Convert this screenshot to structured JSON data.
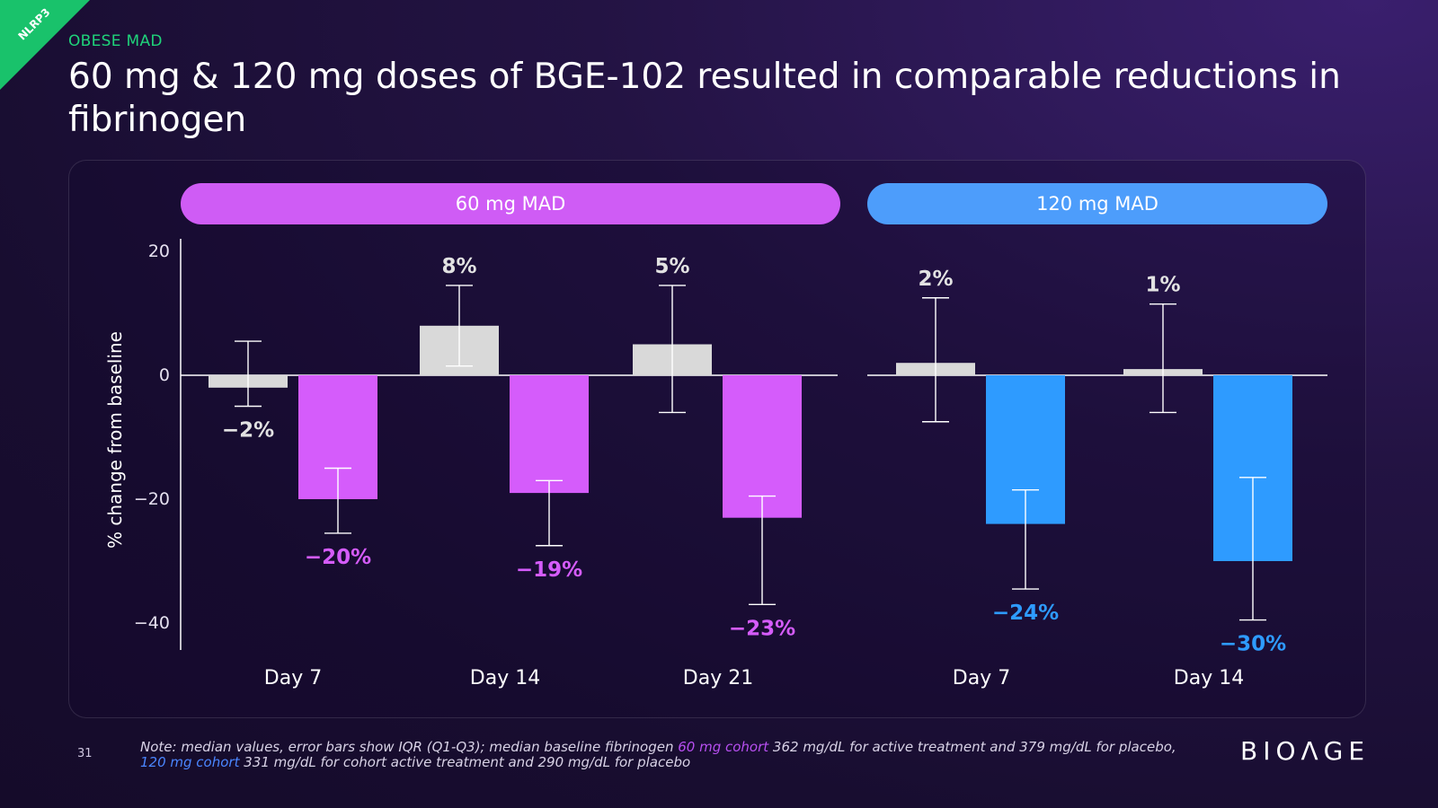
{
  "corner_tag": "NLRP3",
  "eyebrow": "OBESE MAD",
  "title": "60 mg & 120 mg doses of BGE-102 resulted in comparable reductions in fibrinogen",
  "page_number": "31",
  "note": {
    "part1": "Note: median values, error bars show IQR (Q1-Q3); median baseline fibrinogen ",
    "c60": "60 mg cohort",
    "part2": " 362 mg/dL for active treatment and 379 mg/dL for placebo, ",
    "c120": "120 mg cohort",
    "part3": " 331 mg/dL for cohort active treatment and 290 mg/dL for placebo"
  },
  "logo": "BIOΛGE",
  "colors": {
    "placebo": "#d9d9d9",
    "mad60": "#d55cfb",
    "mad120": "#2e9bff",
    "pill60": "#cf5cf5",
    "pill120": "#4d9dfb",
    "accent": "#19c26b"
  },
  "chart_data": {
    "type": "bar",
    "ylabel": "% change from baseline",
    "ylim": [
      -40,
      20
    ],
    "yticks": [
      20,
      0,
      -20,
      -40
    ],
    "groups": [
      {
        "name": "60 mg MAD",
        "color": "#d55cfb",
        "categories": [
          "Day 7",
          "Day 14",
          "Day 21"
        ],
        "series": [
          {
            "name": "",
            "kind": "placebo",
            "values": [
              -2,
              8,
              5
            ],
            "labels": [
              "-2%",
              "8%",
              "5%"
            ],
            "err_low": [
              -5,
              1.5,
              -6
            ],
            "err_high": [
              5.5,
              14.5,
              14.5
            ]
          },
          {
            "name": "",
            "kind": "active",
            "values": [
              -20,
              -19,
              -23
            ],
            "labels": [
              "-20%",
              "-19%",
              "-23%"
            ],
            "err_low": [
              -25.5,
              -27.5,
              -37
            ],
            "err_high": [
              -15,
              -17,
              -19.5
            ]
          }
        ]
      },
      {
        "name": "120 mg MAD",
        "color": "#2e9bff",
        "categories": [
          "Day 7",
          "Day 14"
        ],
        "series": [
          {
            "name": "",
            "kind": "placebo",
            "values": [
              2,
              1
            ],
            "labels": [
              "2%",
              "1%"
            ],
            "err_low": [
              -7.5,
              -6
            ],
            "err_high": [
              12.5,
              11.5
            ]
          },
          {
            "name": "",
            "kind": "active",
            "values": [
              -24,
              -30
            ],
            "labels": [
              "-24%",
              "-30%"
            ],
            "err_low": [
              -34.5,
              -39.5
            ],
            "err_high": [
              -18.5,
              -16.5
            ]
          }
        ]
      }
    ]
  }
}
